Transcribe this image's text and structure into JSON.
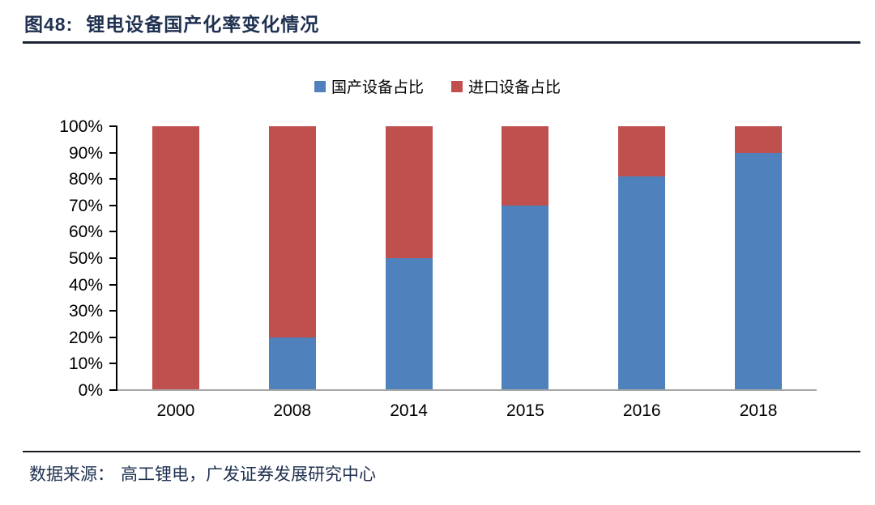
{
  "figure": {
    "label": "图48:",
    "title": "锂电设备国产化率变化情况"
  },
  "legend": [
    {
      "label": "国产设备占比",
      "color": "#4F81BD"
    },
    {
      "label": "进口设备占比",
      "color": "#C0504D"
    }
  ],
  "chart_data": {
    "type": "bar",
    "stacked": true,
    "title": "锂电设备国产化率变化情况",
    "categories": [
      "2000",
      "2008",
      "2014",
      "2015",
      "2016",
      "2018"
    ],
    "series": [
      {
        "name": "国产设备占比",
        "color": "#4F81BD",
        "values": [
          0,
          20,
          50,
          70,
          81,
          90
        ]
      },
      {
        "name": "进口设备占比",
        "color": "#C0504D",
        "values": [
          100,
          80,
          50,
          30,
          19,
          10
        ]
      }
    ],
    "xlabel": "",
    "ylabel": "",
    "ylim": [
      0,
      100
    ],
    "yticks": [
      "0%",
      "10%",
      "20%",
      "30%",
      "40%",
      "50%",
      "60%",
      "70%",
      "80%",
      "90%",
      "100%"
    ],
    "unit": "percent",
    "legend_position": "top-center",
    "grid": false,
    "axis_colors": {
      "y_axis": "#000000",
      "x_baseline": "#A6A6A6"
    }
  },
  "footer": {
    "source_label": "数据来源：",
    "source_text": "高工锂电，广发证券发展研究中心"
  }
}
